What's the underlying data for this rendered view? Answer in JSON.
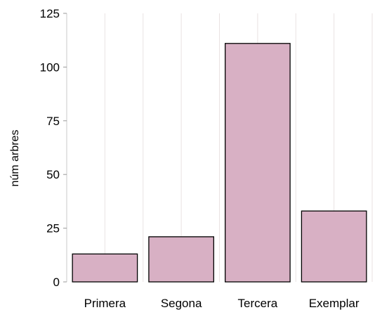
{
  "chart_data": {
    "type": "bar",
    "title": "",
    "xlabel": "",
    "ylabel": "núm arbres",
    "categories": [
      "Primera",
      "Segona",
      "Tercera",
      "Exemplar"
    ],
    "values": [
      13,
      21,
      111,
      33
    ],
    "ylim": [
      0,
      125
    ],
    "yticks": [
      0,
      25,
      50,
      75,
      100,
      125
    ],
    "ytick_labels": [
      "0",
      "25",
      "50",
      "75",
      "100",
      "125"
    ],
    "grid": "vertical-light",
    "legend": "none",
    "colors": {
      "bar_fill": "#d8b0c4",
      "bar_stroke": "#000000"
    }
  }
}
